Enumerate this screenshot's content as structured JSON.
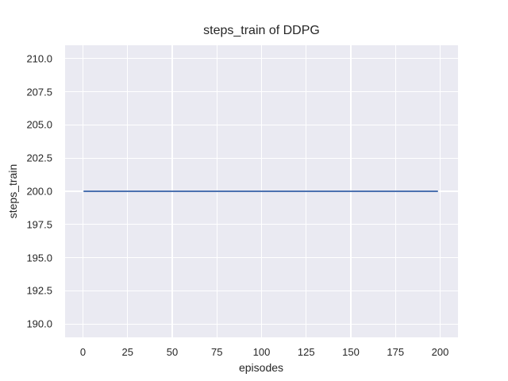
{
  "figure": {
    "background": "#FFFFFF"
  },
  "chart_data": {
    "type": "line",
    "title": "steps_train of DDPG",
    "xlabel": "episodes",
    "ylabel": "steps_train",
    "xlim": [
      -10,
      210
    ],
    "ylim": [
      189,
      211
    ],
    "xticks": [
      0,
      25,
      50,
      75,
      100,
      125,
      150,
      175,
      200
    ],
    "xticklabels": [
      "0",
      "25",
      "50",
      "75",
      "100",
      "125",
      "150",
      "175",
      "200"
    ],
    "yticks": [
      190.0,
      192.5,
      195.0,
      197.5,
      200.0,
      202.5,
      205.0,
      207.5,
      210.0
    ],
    "yticklabels": [
      "190.0",
      "192.5",
      "195.0",
      "197.5",
      "200.0",
      "202.5",
      "205.0",
      "207.5",
      "210.0"
    ],
    "grid": true,
    "legend_position": "none",
    "style": "seaborn-darkgrid",
    "series": [
      {
        "name": "steps_train",
        "color": "#4C72B0",
        "x": [
          0,
          199
        ],
        "y": [
          200,
          200
        ],
        "description": "constant value 200 for every episode from 0 to 199"
      }
    ],
    "colors": {
      "plot_background": "#EAEAF2",
      "gridline": "#FFFFFF",
      "text": "#262626",
      "line": "#4C72B0"
    }
  }
}
